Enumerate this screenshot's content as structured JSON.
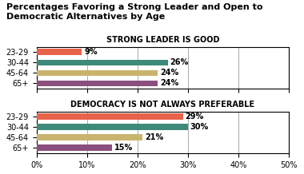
{
  "title": "Percentages Favoring a Strong Leader and Open to Democratic Alternatives by Age",
  "chart_data": [
    {
      "type": "bar",
      "orientation": "horizontal",
      "title": "STRONG LEADER IS GOOD",
      "categories": [
        "23-29",
        "30-44",
        "45-64",
        "65+"
      ],
      "values": [
        9,
        26,
        24,
        24
      ],
      "value_labels": [
        "9%",
        "26%",
        "24%",
        "24%"
      ],
      "data_labels": true,
      "colors": [
        "#e8634a",
        "#3d8a7a",
        "#c9b46e",
        "#8b4f7e"
      ],
      "xlim": [
        0,
        50
      ],
      "xticks": [
        {
          "value": 0,
          "label": "0%"
        },
        {
          "value": 10,
          "label": "10%"
        },
        {
          "value": 20,
          "label": "20%"
        },
        {
          "value": 30,
          "label": "30%"
        },
        {
          "value": 40,
          "label": "40%"
        },
        {
          "value": 50,
          "label": "50%"
        }
      ],
      "grid": true,
      "tick_labels": "y"
    },
    {
      "type": "bar",
      "orientation": "horizontal",
      "title": "DEMOCRACY IS NOT ALWAYS PREFERABLE",
      "categories": [
        "23-29",
        "30-44",
        "45-64",
        "65+"
      ],
      "values": [
        29,
        30,
        21,
        15
      ],
      "value_labels": [
        "29%",
        "30%",
        "21%",
        "15%"
      ],
      "data_labels": true,
      "colors": [
        "#e8634a",
        "#3d8a7a",
        "#c9b46e",
        "#8b4f7e"
      ],
      "xlim": [
        0,
        50
      ],
      "xticks": [
        {
          "value": 0,
          "label": "0%"
        },
        {
          "value": 10,
          "label": "10%"
        },
        {
          "value": 20,
          "label": "20%"
        },
        {
          "value": 30,
          "label": "30%"
        },
        {
          "value": 40,
          "label": "40%"
        },
        {
          "value": 50,
          "label": "50%"
        }
      ],
      "grid": true
    }
  ]
}
